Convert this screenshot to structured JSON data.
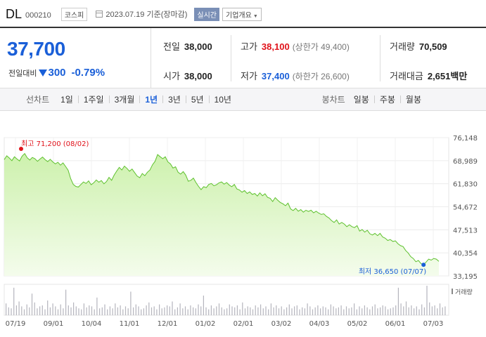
{
  "header": {
    "name": "DL",
    "code": "000210",
    "market": "코스피",
    "date": "2023.07.19 기준(장마감)",
    "realtime_label": "실시간",
    "company_label": "기업개요"
  },
  "quote": {
    "price": "37,700",
    "change_label": "전일대비",
    "change_direction": "down",
    "change_value": "300",
    "change_rate": "-0.79%"
  },
  "stats": {
    "prev_close": {
      "label": "전일",
      "value": "38,000"
    },
    "high": {
      "label": "고가",
      "value": "38,100",
      "sub": "(상한가 49,400)"
    },
    "volume": {
      "label": "거래량",
      "value": "70,509"
    },
    "open": {
      "label": "시가",
      "value": "38,000"
    },
    "low": {
      "label": "저가",
      "value": "37,400",
      "sub": "(하한가 26,600)"
    },
    "amount": {
      "label": "거래대금",
      "value": "2,651",
      "unit": "백만"
    }
  },
  "period_bar": {
    "line_label": "선차트",
    "line_periods": [
      "1일",
      "1주일",
      "3개월",
      "1년",
      "3년",
      "5년",
      "10년"
    ],
    "active_period": "1년",
    "candle_label": "봉차트",
    "candle_periods": [
      "일봉",
      "주봉",
      "월봉"
    ]
  },
  "colors": {
    "price_down": "#1a5fd8",
    "price_up": "#e0121a",
    "line": "#5ec12e",
    "fill_top": "#cdf1ad",
    "fill_bottom": "#f4fcec"
  },
  "chart_data": {
    "type": "area",
    "y_ticks": [
      "76,148",
      "68,989",
      "61,830",
      "54,672",
      "47,513",
      "40,354",
      "33,195"
    ],
    "y_tick_values": [
      76148,
      68989,
      61830,
      54672,
      47513,
      40354,
      33195
    ],
    "ylim": [
      33195,
      76148
    ],
    "x_ticks": [
      "07/19",
      "09/01",
      "10/04",
      "11/01",
      "12/01",
      "01/02",
      "02/01",
      "03/02",
      "04/03",
      "05/02",
      "06/01",
      "07/03"
    ],
    "high_annotation": "최고 71,200 (08/02)",
    "low_annotation": "최저 36,650 (07/07)",
    "high_value": 71200,
    "low_value": 36650,
    "volume_label": "거래량",
    "series": [
      {
        "values": [
          69300,
          70500,
          69800,
          69000,
          70200,
          69500,
          68900,
          70400,
          71200,
          69900,
          69200,
          70000,
          69600,
          68800,
          69500,
          70100,
          69300,
          68700,
          69400,
          68600,
          68000,
          68500,
          67600,
          68300,
          67200,
          66000,
          63400,
          61600,
          61000,
          60800,
          61600,
          62400,
          61900,
          62700,
          61500,
          62100,
          63000,
          62300,
          62800,
          61800,
          62500,
          63800,
          62900,
          64500,
          65800,
          66900,
          66100,
          67300,
          66600,
          65700,
          66400,
          65300,
          64200,
          63700,
          65000,
          64300,
          65400,
          66100,
          67700,
          68800,
          70900,
          70200,
          69600,
          70200,
          68600,
          68000,
          66700,
          67100,
          65400,
          64800,
          65600,
          64500,
          62600,
          62900,
          63600,
          62200,
          61000,
          60000,
          60900,
          60600,
          61600,
          61900,
          61200,
          61500,
          62100,
          62400,
          61700,
          62200,
          61400,
          60900,
          61600,
          60200,
          59900,
          59200,
          59700,
          58800,
          59300,
          58500,
          58800,
          58000,
          59000,
          58100,
          58700,
          57600,
          57300,
          56300,
          57500,
          56700,
          56000,
          55600,
          55000,
          55800,
          54000,
          53500,
          54200,
          53300,
          53800,
          53000,
          53600,
          53200,
          53600,
          52800,
          53300,
          52700,
          52300,
          52500,
          51700,
          51200,
          50400,
          49800,
          50600,
          49300,
          49800,
          49300,
          48500,
          49100,
          48500,
          48200,
          48800,
          47100,
          47600,
          46800,
          47400,
          46300,
          45900,
          46400,
          45700,
          46400,
          45300,
          44900,
          44200,
          44500,
          43900,
          44100,
          43200,
          42600,
          42300,
          41100,
          40300,
          39200,
          38600,
          37600,
          38000,
          37000,
          36650,
          37500,
          38400,
          38100,
          38600,
          38400,
          37700
        ]
      }
    ],
    "volumes": [
      12,
      8,
      7,
      28,
      10,
      14,
      9,
      6,
      11,
      8,
      22,
      13,
      7,
      9,
      10,
      6,
      15,
      8,
      12,
      9,
      6,
      11,
      7,
      26,
      10,
      8,
      13,
      9,
      7,
      6,
      12,
      8,
      10,
      9,
      6,
      18,
      7,
      8,
      11,
      6,
      9,
      7,
      12,
      8,
      10,
      6,
      9,
      7,
      24,
      8,
      11,
      9,
      6,
      7,
      10,
      13,
      8,
      9,
      6,
      11,
      7,
      8,
      10,
      9,
      14,
      6,
      8,
      12,
      7,
      9,
      6,
      10,
      8,
      7,
      11,
      9,
      20,
      8,
      6,
      10,
      7,
      9,
      12,
      8,
      6,
      7,
      11,
      9,
      8,
      10,
      6,
      13,
      7,
      9,
      8,
      6,
      10,
      8,
      11,
      7,
      9,
      6,
      12,
      8,
      10,
      7,
      9,
      6,
      8,
      11,
      7,
      9,
      10,
      6,
      8,
      7,
      12,
      9,
      6,
      8,
      10,
      7,
      9,
      8,
      6,
      11,
      9,
      7,
      8,
      10,
      6,
      9,
      7,
      8,
      12,
      6,
      9,
      7,
      10,
      8,
      6,
      9,
      11,
      7,
      8,
      10,
      9,
      6,
      7,
      8,
      10,
      28,
      12,
      9,
      14,
      8,
      10,
      7,
      9,
      6,
      11,
      8,
      30,
      13,
      9,
      10,
      7,
      12,
      8,
      9
    ]
  }
}
